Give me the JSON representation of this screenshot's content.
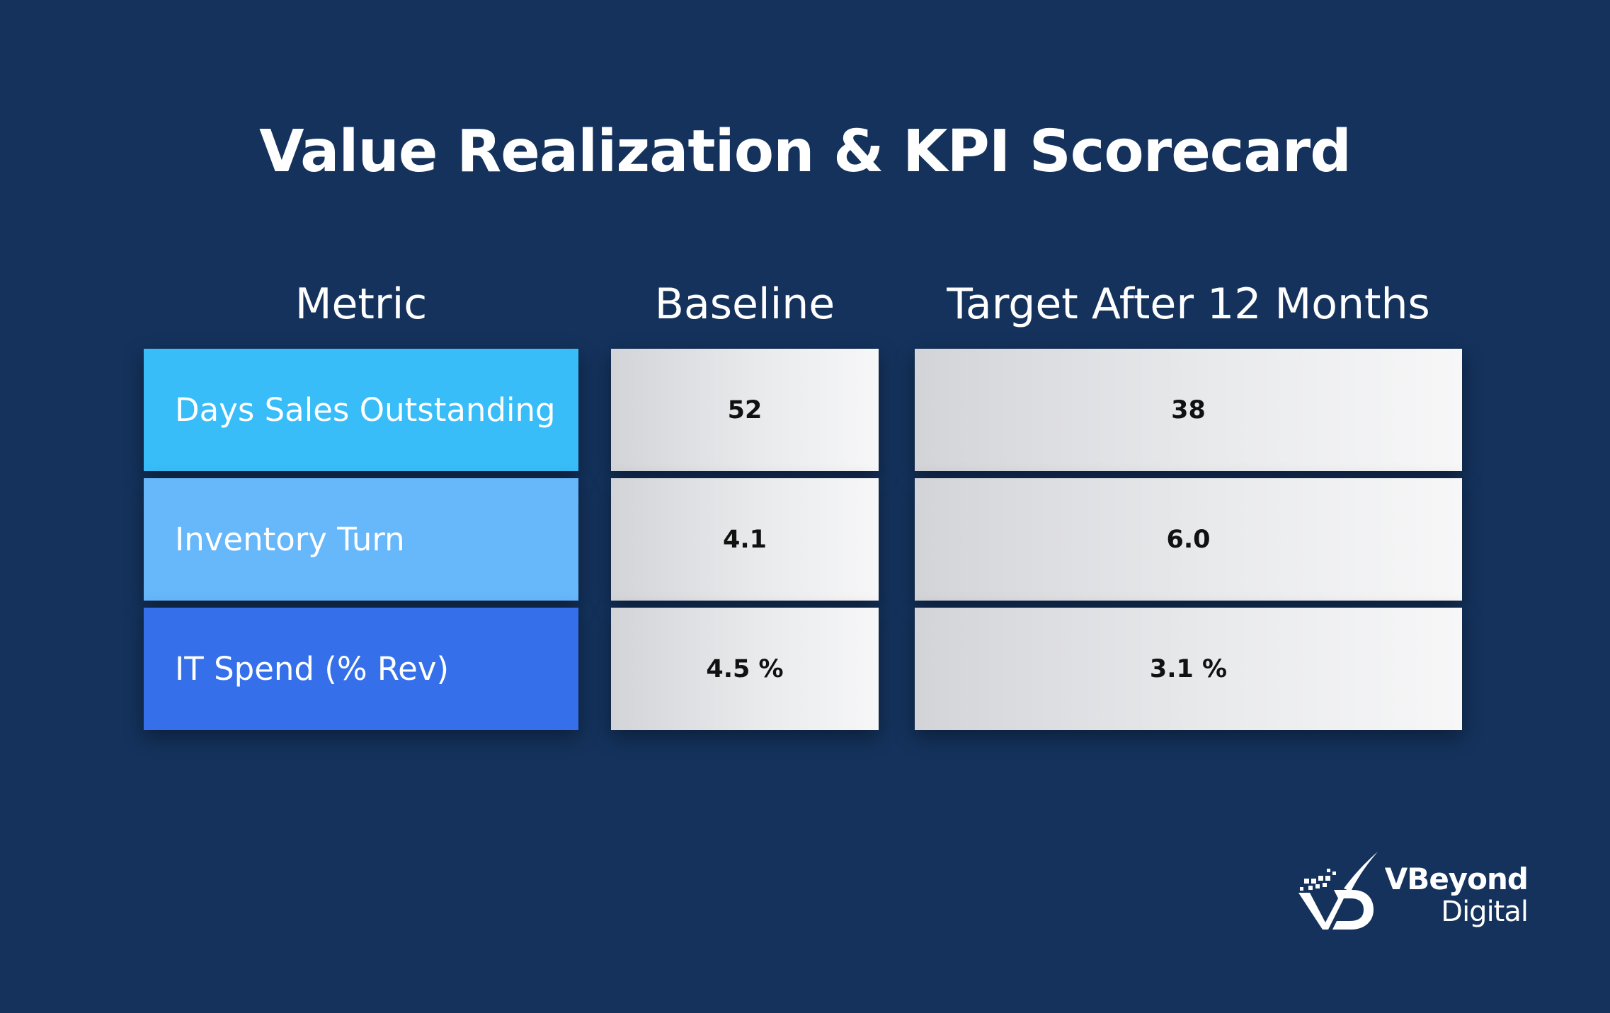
{
  "title": "Value Realization & KPI Scorecard",
  "columns": {
    "metric": "Metric",
    "baseline": "Baseline",
    "target": "Target After 12 Months"
  },
  "rows": [
    {
      "metric": "Days Sales Outstanding",
      "baseline": "52",
      "target": "38",
      "color": "#38bdf8"
    },
    {
      "metric": "Inventory Turn",
      "baseline": "4.1",
      "target": "6.0",
      "color": "#67b7fb"
    },
    {
      "metric": "IT Spend (% Rev)",
      "baseline": "4.5 %",
      "target": "3.1 %",
      "color": "#3570ea"
    }
  ],
  "logo": {
    "line1": "VBeyond",
    "line2": "Digital"
  },
  "colors": {
    "background": "#14325c",
    "value_cell_start": "#d3d4d8",
    "value_cell_end": "#f7f7f8"
  }
}
